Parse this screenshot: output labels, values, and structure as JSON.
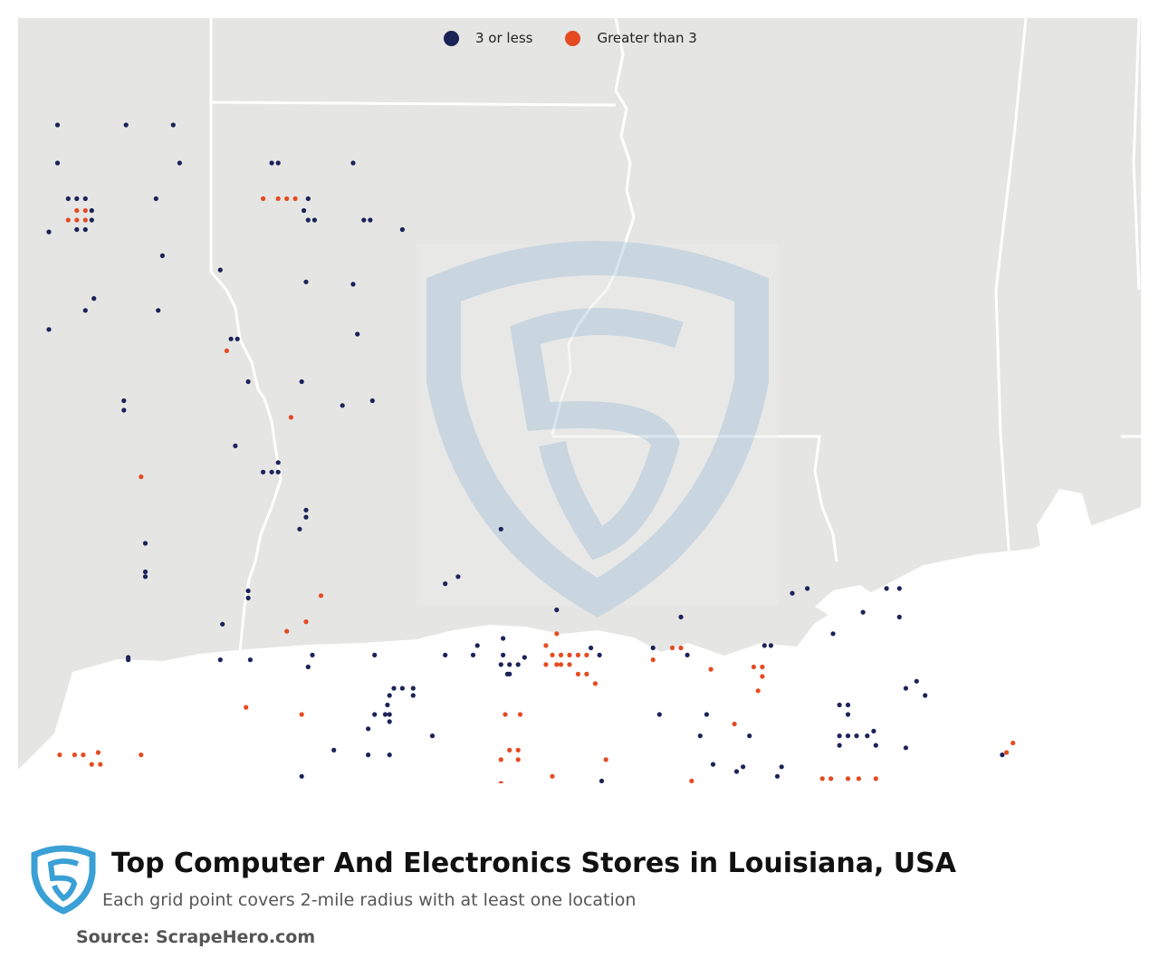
{
  "legend": {
    "low_label": "3 or less",
    "high_label": "Greater than 3"
  },
  "colors": {
    "low": "#1b2358",
    "high": "#e54b22",
    "land": "#e5e5e4",
    "water": "#ffffff",
    "border": "#ffffff",
    "watermark": "#a9c6d9",
    "logo": "#3aa0d5"
  },
  "title": "Top Computer And Electronics Stores in Louisiana, USA",
  "subtitle": "Each grid point covers 2-mile radius with at least one location",
  "source": "Source: ScrapeHero.com",
  "icons": {
    "footer_logo": "scrapehero-shield-logo",
    "watermark": "scrapehero-watermark"
  },
  "chart_data": {
    "type": "scatter",
    "x_unit": "longitude",
    "y_unit": "latitude",
    "series": [
      {
        "name": "3 or less",
        "color": "#1b2358",
        "points": [
          [
            -93.91,
            33.0
          ],
          [
            -93.59,
            33.0
          ],
          [
            -93.37,
            33.0
          ],
          [
            -93.91,
            32.84
          ],
          [
            -93.34,
            32.84
          ],
          [
            -92.91,
            32.84
          ],
          [
            -92.88,
            32.84
          ],
          [
            -92.53,
            32.84
          ],
          [
            -93.86,
            32.69
          ],
          [
            -93.82,
            32.69
          ],
          [
            -93.78,
            32.69
          ],
          [
            -93.45,
            32.69
          ],
          [
            -92.74,
            32.69
          ],
          [
            -93.75,
            32.64
          ],
          [
            -93.75,
            32.6
          ],
          [
            -92.76,
            32.64
          ],
          [
            -92.74,
            32.6
          ],
          [
            -92.71,
            32.6
          ],
          [
            -92.48,
            32.6
          ],
          [
            -92.45,
            32.6
          ],
          [
            -92.3,
            32.56
          ],
          [
            -93.82,
            32.56
          ],
          [
            -93.78,
            32.56
          ],
          [
            -93.95,
            32.55
          ],
          [
            -93.42,
            32.45
          ],
          [
            -93.15,
            32.39
          ],
          [
            -92.75,
            32.34
          ],
          [
            -92.53,
            32.33
          ],
          [
            -93.74,
            32.27
          ],
          [
            -93.78,
            32.22
          ],
          [
            -93.95,
            32.14
          ],
          [
            -93.44,
            32.22
          ],
          [
            -93.07,
            32.1
          ],
          [
            -93.1,
            32.1
          ],
          [
            -92.51,
            32.12
          ],
          [
            -93.02,
            31.92
          ],
          [
            -93.6,
            31.84
          ],
          [
            -93.6,
            31.8
          ],
          [
            -92.77,
            31.92
          ],
          [
            -92.58,
            31.82
          ],
          [
            -92.44,
            31.84
          ],
          [
            -93.08,
            31.65
          ],
          [
            -92.95,
            31.54
          ],
          [
            -92.91,
            31.54
          ],
          [
            -92.88,
            31.58
          ],
          [
            -92.88,
            31.54
          ],
          [
            -92.75,
            31.38
          ],
          [
            -92.75,
            31.35
          ],
          [
            -92.78,
            31.3
          ],
          [
            -93.5,
            31.24
          ],
          [
            -93.5,
            31.12
          ],
          [
            -93.5,
            31.1
          ],
          [
            -93.02,
            31.04
          ],
          [
            -93.02,
            31.01
          ],
          [
            -93.14,
            30.9
          ],
          [
            -93.58,
            30.75
          ],
          [
            -93.58,
            30.76
          ],
          [
            -93.15,
            30.75
          ],
          [
            -93.01,
            30.75
          ],
          [
            -92.74,
            30.72
          ],
          [
            -92.72,
            30.77
          ],
          [
            -92.43,
            30.77
          ],
          [
            -92.1,
            30.77
          ],
          [
            -91.97,
            30.77
          ],
          [
            -91.95,
            30.81
          ],
          [
            -92.1,
            31.07
          ],
          [
            -92.04,
            31.1
          ],
          [
            -91.84,
            31.3
          ],
          [
            -91.83,
            30.84
          ],
          [
            -91.73,
            30.76
          ],
          [
            -91.83,
            30.77
          ],
          [
            -91.84,
            30.73
          ],
          [
            -91.8,
            30.73
          ],
          [
            -91.8,
            30.69
          ],
          [
            -91.76,
            30.73
          ],
          [
            -91.81,
            30.69
          ],
          [
            -91.58,
            30.96
          ],
          [
            -91.42,
            30.8
          ],
          [
            -91.38,
            30.77
          ],
          [
            -91.13,
            30.8
          ],
          [
            -91.0,
            30.93
          ],
          [
            -90.97,
            30.77
          ],
          [
            -90.61,
            30.81
          ],
          [
            -90.58,
            30.81
          ],
          [
            -90.48,
            31.03
          ],
          [
            -90.41,
            31.05
          ],
          [
            -90.29,
            30.86
          ],
          [
            -90.04,
            31.05
          ],
          [
            -89.98,
            31.05
          ],
          [
            -90.15,
            30.95
          ],
          [
            -89.98,
            30.93
          ],
          [
            -89.9,
            30.66
          ],
          [
            -89.95,
            30.63
          ],
          [
            -89.86,
            30.6
          ],
          [
            -92.25,
            30.6
          ],
          [
            -92.36,
            30.6
          ],
          [
            -92.34,
            30.63
          ],
          [
            -92.3,
            30.63
          ],
          [
            -92.25,
            30.63
          ],
          [
            -92.37,
            30.56
          ],
          [
            -92.38,
            30.52
          ],
          [
            -92.36,
            30.52
          ],
          [
            -92.43,
            30.52
          ],
          [
            -92.36,
            30.49
          ],
          [
            -92.16,
            30.43
          ],
          [
            -92.62,
            30.37
          ],
          [
            -92.77,
            30.26
          ],
          [
            -92.46,
            30.35
          ],
          [
            -92.36,
            30.35
          ],
          [
            -92.46,
            30.46
          ],
          [
            -91.1,
            30.52
          ],
          [
            -91.37,
            30.24
          ],
          [
            -90.9,
            30.16
          ],
          [
            -90.9,
            30.12
          ],
          [
            -90.88,
            30.52
          ],
          [
            -90.68,
            30.43
          ],
          [
            -90.53,
            30.3
          ],
          [
            -90.74,
            30.28
          ],
          [
            -90.91,
            30.43
          ],
          [
            -90.71,
            30.3
          ],
          [
            -90.85,
            30.31
          ],
          [
            -90.55,
            30.26
          ],
          [
            -90.26,
            30.56
          ],
          [
            -90.22,
            30.56
          ],
          [
            -90.22,
            30.52
          ],
          [
            -90.09,
            30.39
          ],
          [
            -90.26,
            30.43
          ],
          [
            -90.26,
            30.39
          ],
          [
            -90.22,
            30.43
          ],
          [
            -90.18,
            30.43
          ],
          [
            -90.13,
            30.43
          ],
          [
            -90.1,
            30.45
          ],
          [
            -89.95,
            30.38
          ],
          [
            -89.5,
            30.35
          ],
          [
            -90.26,
            30.22
          ],
          [
            -90.15,
            30.2
          ],
          [
            -89.87,
            30.12
          ],
          [
            -89.87,
            30.0
          ],
          [
            -90.2,
            29.99
          ],
          [
            -90.05,
            29.95
          ],
          [
            -90.22,
            29.88
          ],
          [
            -90.48,
            29.93
          ],
          [
            -90.41,
            29.91
          ],
          [
            -90.11,
            29.77
          ],
          [
            -90.06,
            29.72
          ],
          [
            -90.0,
            29.84
          ],
          [
            -89.88,
            29.78
          ],
          [
            -89.8,
            29.72
          ],
          [
            -89.75,
            29.9
          ],
          [
            -89.45,
            29.79
          ],
          [
            -89.45,
            29.74
          ],
          [
            -89.59,
            29.9
          ],
          [
            -90.45,
            30.17
          ],
          [
            -91.08,
            30.13
          ],
          [
            -91.24,
            30.16
          ],
          [
            -92.18,
            30.09
          ],
          [
            -92.2,
            30.1
          ],
          [
            -93.23,
            30.16
          ],
          [
            -91.84,
            30.07
          ],
          [
            -91.6,
            30.07
          ],
          [
            -91.73,
            30.05
          ],
          [
            -91.78,
            30.06
          ],
          [
            -91.17,
            30.17
          ]
        ]
      },
      {
        "name": "Greater than 3",
        "color": "#e54b22",
        "points": [
          [
            -93.82,
            32.64
          ],
          [
            -93.78,
            32.64
          ],
          [
            -93.86,
            32.6
          ],
          [
            -93.82,
            32.6
          ],
          [
            -93.78,
            32.6
          ],
          [
            -92.95,
            32.69
          ],
          [
            -92.88,
            32.69
          ],
          [
            -92.84,
            32.69
          ],
          [
            -92.8,
            32.69
          ],
          [
            -93.12,
            32.05
          ],
          [
            -92.82,
            31.77
          ],
          [
            -93.52,
            31.52
          ],
          [
            -92.68,
            31.02
          ],
          [
            -92.84,
            30.87
          ],
          [
            -92.75,
            30.91
          ],
          [
            -91.58,
            30.86
          ],
          [
            -91.63,
            30.81
          ],
          [
            -91.6,
            30.77
          ],
          [
            -91.56,
            30.77
          ],
          [
            -91.52,
            30.77
          ],
          [
            -91.48,
            30.77
          ],
          [
            -91.44,
            30.77
          ],
          [
            -91.63,
            30.73
          ],
          [
            -91.58,
            30.73
          ],
          [
            -91.56,
            30.73
          ],
          [
            -91.52,
            30.73
          ],
          [
            -91.48,
            30.69
          ],
          [
            -91.44,
            30.69
          ],
          [
            -91.4,
            30.65
          ],
          [
            -91.13,
            30.75
          ],
          [
            -91.04,
            30.8
          ],
          [
            -91.0,
            30.8
          ],
          [
            -90.86,
            30.71
          ],
          [
            -90.66,
            30.72
          ],
          [
            -90.62,
            30.72
          ],
          [
            -90.62,
            30.68
          ],
          [
            -90.64,
            30.62
          ],
          [
            -91.35,
            30.33
          ],
          [
            -90.75,
            30.48
          ],
          [
            -90.34,
            30.25
          ],
          [
            -90.3,
            30.25
          ],
          [
            -90.22,
            30.25
          ],
          [
            -90.17,
            30.25
          ],
          [
            -90.14,
            30.22
          ],
          [
            -90.09,
            30.25
          ],
          [
            -90.05,
            30.22
          ],
          [
            -90.05,
            30.18
          ],
          [
            -90.22,
            30.22
          ],
          [
            -90.18,
            30.22
          ],
          [
            -90.13,
            30.18
          ],
          [
            -90.09,
            30.18
          ],
          [
            -90.18,
            30.18
          ],
          [
            -90.7,
            30.12
          ],
          [
            -90.95,
            30.24
          ],
          [
            -90.42,
            29.92
          ],
          [
            -93.83,
            30.35
          ],
          [
            -93.79,
            30.35
          ],
          [
            -93.75,
            30.31
          ],
          [
            -93.71,
            30.31
          ],
          [
            -93.9,
            30.35
          ],
          [
            -93.52,
            30.35
          ],
          [
            -93.72,
            30.36
          ],
          [
            -93.03,
            30.55
          ],
          [
            -92.77,
            30.52
          ],
          [
            -91.82,
            30.52
          ],
          [
            -91.75,
            30.52
          ],
          [
            -91.8,
            30.37
          ],
          [
            -91.76,
            30.37
          ],
          [
            -91.84,
            30.33
          ],
          [
            -91.76,
            30.33
          ],
          [
            -91.6,
            30.26
          ],
          [
            -91.84,
            30.23
          ],
          [
            -91.81,
            30.22
          ],
          [
            -91.78,
            30.22
          ],
          [
            -89.48,
            30.36
          ],
          [
            -89.45,
            30.4
          ]
        ]
      }
    ]
  }
}
